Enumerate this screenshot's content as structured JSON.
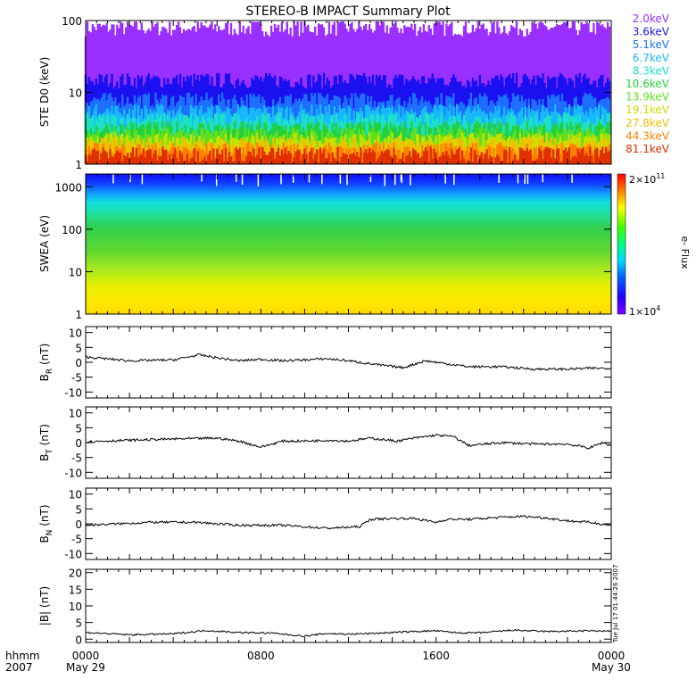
{
  "title": "STEREO-B IMPACT Summary Plot",
  "timestamp": "Tue Jul 17 01:44:26 2007",
  "x_axis": {
    "row1_label": "hhmm",
    "row2_label": "2007",
    "ticks": [
      {
        "t": 0,
        "time": "0000",
        "date": "May 29"
      },
      {
        "t": 8,
        "time": "0800",
        "date": ""
      },
      {
        "t": 16,
        "time": "1600",
        "date": ""
      },
      {
        "t": 24,
        "time": "0000",
        "date": "May 30"
      }
    ]
  },
  "colorbar": {
    "label": "e- Flux",
    "max_mantissa": "2×10",
    "max_exp": "11",
    "min_mantissa": "1×10",
    "min_exp": "4"
  },
  "chart_data": [
    {
      "type": "line",
      "title": "",
      "ylabel": "STE D0 (keV)",
      "yscale": "log",
      "ylim": [
        1,
        100
      ],
      "yticks": [
        "1",
        "10",
        "100"
      ],
      "x_range_hours": [
        0,
        24
      ],
      "series": [
        {
          "name": "2.0keV",
          "color": "#9a30ff",
          "level": 80
        },
        {
          "name": "3.6keV",
          "color": "#1a10f0",
          "level": 15
        },
        {
          "name": "5.1keV",
          "color": "#1e6fff",
          "level": 8
        },
        {
          "name": "6.7keV",
          "color": "#18b8ff",
          "level": 5.5
        },
        {
          "name": "8.3keV",
          "color": "#1ee0c8",
          "level": 4.2
        },
        {
          "name": "10.6keV",
          "color": "#22d040",
          "level": 3.2
        },
        {
          "name": "13.9keV",
          "color": "#5fe020",
          "level": 2.6
        },
        {
          "name": "19.1keV",
          "color": "#c8e000",
          "level": 2.2
        },
        {
          "name": "27.8keV",
          "color": "#f0c000",
          "level": 1.9
        },
        {
          "name": "44.3keV",
          "color": "#ff8000",
          "level": 1.6
        },
        {
          "name": "81.1keV",
          "color": "#e03000",
          "level": 1.4
        }
      ]
    },
    {
      "type": "heatmap",
      "ylabel": "SWEA (eV)",
      "yscale": "log",
      "ylim": [
        1,
        2000
      ],
      "yticks": [
        "1",
        "10",
        "100",
        "1000"
      ],
      "x_range_hours": [
        0,
        24
      ],
      "zlabel": "e- Flux",
      "zlim": [
        10000,
        200000000000
      ]
    },
    {
      "type": "line",
      "ylabel_main": "B",
      "ylabel_sub": "R",
      "ylabel_unit": " (nT)",
      "ylim": [
        -12,
        12
      ],
      "yticks": [
        "-10",
        "-5",
        "0",
        "5",
        "10"
      ],
      "ytick_values": [
        -10,
        -5,
        0,
        5,
        10
      ],
      "x": [
        0,
        2,
        4,
        5.2,
        6,
        7,
        8,
        9,
        10,
        11,
        12,
        13.5,
        14.5,
        15.5,
        16.5,
        17.5,
        19,
        20.5,
        22,
        23,
        24
      ],
      "y": [
        1.8,
        0.5,
        0.8,
        2.5,
        1.5,
        0.5,
        1.0,
        0.5,
        0.8,
        1.2,
        0.5,
        -1.0,
        -1.8,
        0.5,
        -0.5,
        -1.5,
        -1.5,
        -2.3,
        -2.3,
        -2.0,
        -2.0
      ]
    },
    {
      "type": "line",
      "ylabel_main": "B",
      "ylabel_sub": "T",
      "ylabel_unit": " (nT)",
      "ylim": [
        -12,
        12
      ],
      "yticks": [
        "-10",
        "-5",
        "0",
        "5",
        "10"
      ],
      "ytick_values": [
        -10,
        -5,
        0,
        5,
        10
      ],
      "x": [
        0,
        2,
        4,
        6,
        7,
        8,
        9,
        10,
        11,
        12,
        13,
        14.2,
        15,
        16,
        16.8,
        17.5,
        19,
        20.5,
        22,
        23,
        23.6,
        24
      ],
      "y": [
        0.3,
        0.8,
        1.2,
        1.5,
        0.5,
        -1.5,
        0.5,
        0.5,
        0.8,
        0.5,
        1.5,
        0.5,
        1.5,
        2.5,
        2.0,
        -1.0,
        0.0,
        -0.5,
        -0.5,
        -1.8,
        0.0,
        -1.0
      ]
    },
    {
      "type": "line",
      "ylabel_main": "B",
      "ylabel_sub": "N",
      "ylabel_unit": " (nT)",
      "ylim": [
        -12,
        12
      ],
      "yticks": [
        "-10",
        "-5",
        "0",
        "5",
        "10"
      ],
      "ytick_values": [
        -10,
        -5,
        0,
        5,
        10
      ],
      "x": [
        0,
        1.5,
        3,
        5,
        7,
        9,
        11,
        12.5,
        13,
        14,
        15,
        16,
        16.5,
        17.5,
        19,
        20,
        21,
        22,
        23,
        24
      ],
      "y": [
        -0.5,
        0.0,
        0.5,
        0.5,
        -0.5,
        -0.5,
        -1.5,
        -1.0,
        1.5,
        1.8,
        1.8,
        0.5,
        1.5,
        1.5,
        2.2,
        2.5,
        2.0,
        1.0,
        0.5,
        -0.5
      ]
    },
    {
      "type": "line",
      "ylabel_main": "|B|",
      "ylabel_sub": "",
      "ylabel_unit": " (nT)",
      "ylim": [
        -1,
        21
      ],
      "yticks": [
        "0",
        "5",
        "10",
        "15",
        "20"
      ],
      "ytick_values": [
        0,
        5,
        10,
        15,
        20
      ],
      "x": [
        0,
        2,
        4,
        5.5,
        7,
        8.5,
        10,
        11,
        12,
        13,
        14,
        15,
        16,
        17,
        18,
        19.5,
        21,
        22,
        23,
        24
      ],
      "y": [
        2.0,
        1.3,
        1.6,
        2.6,
        2.0,
        1.8,
        0.9,
        1.7,
        1.5,
        1.7,
        2.0,
        2.3,
        2.5,
        1.9,
        1.9,
        2.7,
        2.3,
        2.4,
        2.5,
        2.4
      ]
    }
  ]
}
